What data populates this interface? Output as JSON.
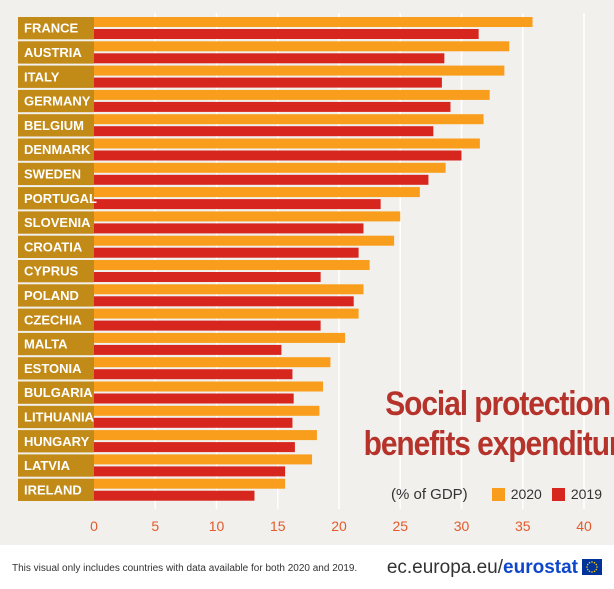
{
  "chart_data": {
    "type": "bar",
    "orientation": "horizontal",
    "title": "Social protection benefits expenditure",
    "title_lines": [
      "Social protection",
      "benefits expenditure"
    ],
    "unit": "(% of GDP)",
    "categories": [
      "FRANCE",
      "AUSTRIA",
      "ITALY",
      "GERMANY",
      "BELGIUM",
      "DENMARK",
      "SWEDEN",
      "PORTUGAL",
      "SLOVENIA",
      "CROATIA",
      "CYPRUS",
      "POLAND",
      "CZECHIA",
      "MALTA",
      "ESTONIA",
      "BULGARIA",
      "LITHUANIA",
      "HUNGARY",
      "LATVIA",
      "IRELAND"
    ],
    "series": [
      {
        "name": "2020",
        "color": "#f99d1c",
        "values": [
          35.8,
          33.9,
          33.5,
          32.3,
          31.8,
          31.5,
          28.7,
          26.6,
          25.0,
          24.5,
          22.5,
          22.0,
          21.6,
          20.5,
          19.3,
          18.7,
          18.4,
          18.2,
          17.8,
          15.6
        ]
      },
      {
        "name": "2019",
        "color": "#d7261e",
        "values": [
          31.4,
          28.6,
          28.4,
          29.1,
          27.7,
          30.0,
          27.3,
          23.4,
          22.0,
          21.6,
          18.5,
          21.2,
          18.5,
          15.3,
          16.2,
          16.3,
          16.2,
          16.4,
          15.6,
          13.1
        ]
      }
    ],
    "xlim": [
      0,
      40
    ],
    "xticks": [
      "0",
      "5",
      "10",
      "15",
      "20",
      "25",
      "30",
      "35",
      "40"
    ],
    "grid": true,
    "legend": "bottom-right"
  },
  "legend": {
    "unit_label": "(% of GDP)",
    "entries": [
      {
        "label": "2020",
        "color": "#f99d1c"
      },
      {
        "label": "2019",
        "color": "#d7261e"
      }
    ]
  },
  "footer": {
    "note": "This visual only includes countries with data available for both 2020 and 2019.",
    "source_domain": "ec.europa.eu/",
    "source_brand": "eurostat"
  },
  "colors": {
    "label_band": "#c28a17",
    "title": "#b5332b",
    "tick": "#e3592b",
    "brand": "#0e47cb"
  }
}
